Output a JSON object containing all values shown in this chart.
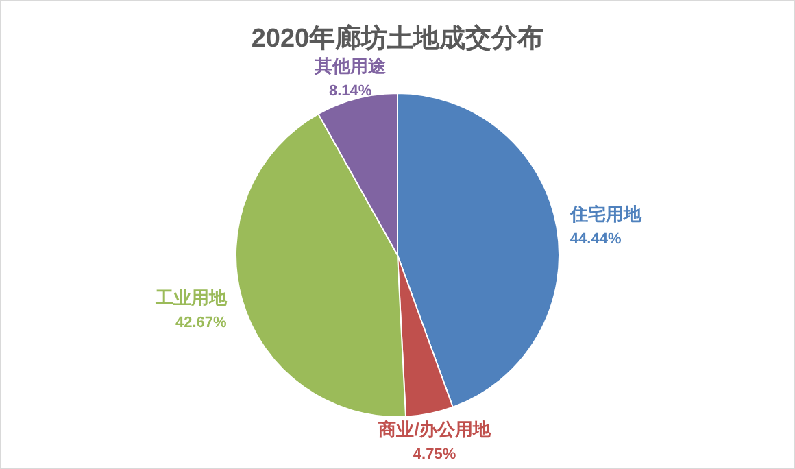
{
  "chart_data": {
    "type": "pie",
    "title": "2020年廊坊土地成交分布",
    "categories": [
      "住宅用地",
      "商业/办公用地",
      "工业用地",
      "其他用途"
    ],
    "values": [
      44.44,
      4.75,
      42.67,
      8.14
    ],
    "value_labels": [
      "44.44%",
      "4.75%",
      "42.67%",
      "8.14%"
    ],
    "colors": [
      "#4f81bd",
      "#c0504d",
      "#9bbb59",
      "#8064a2"
    ]
  }
}
